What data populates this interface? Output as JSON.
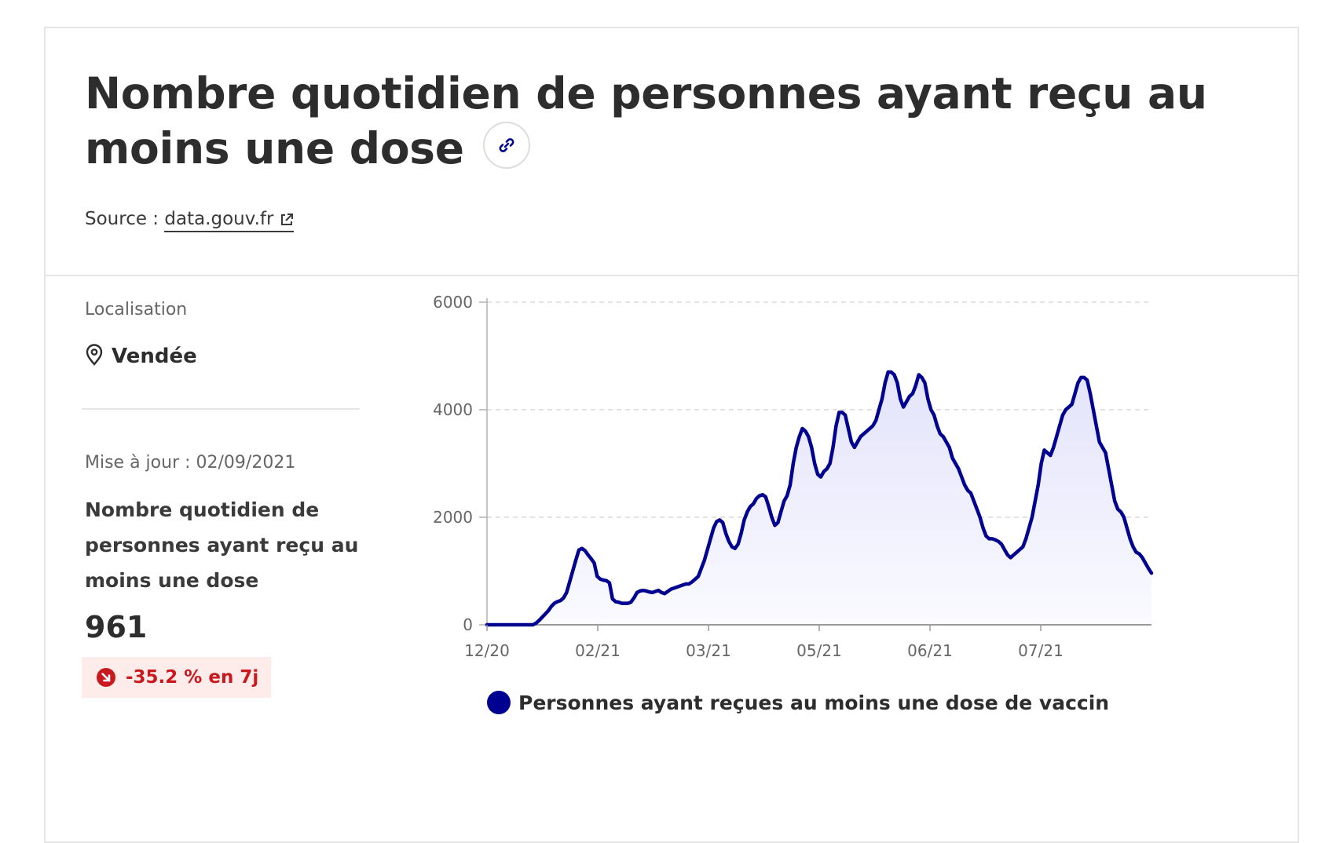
{
  "header": {
    "title": "Nombre quotidien de personnes ayant reçu au moins une dose",
    "source_label": "Source :",
    "source_link": "data.gouv.fr"
  },
  "sidebar": {
    "location_label": "Localisation",
    "location_value": "Vendée",
    "updated": "Mise à jour : 02/09/2021",
    "metric_title": "Nombre quotidien de personnes ayant reçu au moins une dose",
    "metric_value": "961",
    "trend": "-35.2 % en 7j"
  },
  "colors": {
    "series": "#000091",
    "trend_text": "#c9191e",
    "trend_bg": "#fdecea"
  },
  "icons": [
    "link-icon",
    "external-link-icon",
    "map-pin-icon",
    "arrow-down-right-icon"
  ],
  "chart_data": {
    "type": "area",
    "ylim": [
      0,
      6000
    ],
    "yticks": [
      "0",
      "2000",
      "4000",
      "6000"
    ],
    "xticks": [
      "12/20",
      "02/21",
      "03/21",
      "05/21",
      "06/21",
      "07/21"
    ],
    "grid": true,
    "legend_position": "bottom",
    "series": [
      {
        "name": "Personnes ayant reçues au moins une dose de vaccin",
        "values": [
          0,
          0,
          0,
          0,
          0,
          0,
          0,
          0,
          0,
          0,
          0,
          0,
          0,
          0,
          0,
          0,
          30,
          80,
          140,
          200,
          260,
          340,
          400,
          430,
          450,
          500,
          600,
          800,
          1000,
          1200,
          1390,
          1420,
          1380,
          1300,
          1230,
          1150,
          900,
          850,
          830,
          820,
          780,
          480,
          430,
          420,
          400,
          400,
          400,
          420,
          500,
          600,
          630,
          640,
          630,
          610,
          600,
          620,
          640,
          600,
          580,
          620,
          660,
          680,
          700,
          720,
          740,
          760,
          760,
          800,
          850,
          900,
          1050,
          1200,
          1400,
          1600,
          1800,
          1920,
          1950,
          1900,
          1700,
          1550,
          1450,
          1420,
          1500,
          1700,
          1950,
          2100,
          2200,
          2250,
          2350,
          2400,
          2420,
          2380,
          2200,
          2000,
          1850,
          1900,
          2100,
          2300,
          2400,
          2600,
          3000,
          3300,
          3500,
          3650,
          3600,
          3500,
          3300,
          3000,
          2800,
          2750,
          2850,
          2900,
          3000,
          3300,
          3700,
          3950,
          3950,
          3900,
          3650,
          3400,
          3300,
          3400,
          3500,
          3550,
          3600,
          3650,
          3700,
          3800,
          4000,
          4200,
          4500,
          4700,
          4700,
          4650,
          4500,
          4200,
          4050,
          4150,
          4250,
          4300,
          4450,
          4650,
          4600,
          4500,
          4200,
          4000,
          3900,
          3700,
          3550,
          3500,
          3400,
          3300,
          3100,
          3000,
          2900,
          2750,
          2600,
          2500,
          2450,
          2300,
          2150,
          2000,
          1800,
          1650,
          1600,
          1600,
          1580,
          1550,
          1500,
          1400,
          1300,
          1250,
          1300,
          1350,
          1400,
          1450,
          1600,
          1800,
          2000,
          2300,
          2600,
          3000,
          3250,
          3200,
          3150,
          3300,
          3500,
          3700,
          3900,
          4000,
          4050,
          4100,
          4300,
          4500,
          4600,
          4600,
          4550,
          4300,
          4000,
          3700,
          3400,
          3300,
          3200,
          2900,
          2600,
          2300,
          2150,
          2100,
          2000,
          1800,
          1600,
          1450,
          1350,
          1320,
          1250,
          1150,
          1050,
          961
        ]
      }
    ]
  }
}
